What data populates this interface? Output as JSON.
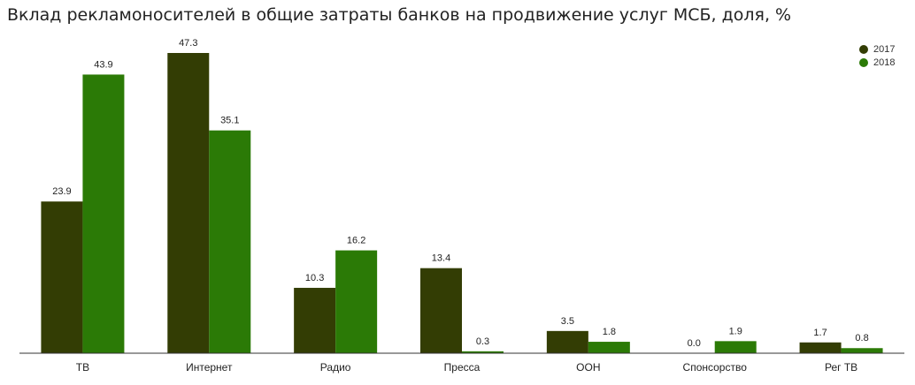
{
  "title": "Вклад рекламоносителей в общие затраты банков на продвижение услуг МСБ, доля, %",
  "chart_data": {
    "type": "bar",
    "title": "Вклад рекламоносителей в общие затраты банков на продвижение услуг МСБ, доля, %",
    "xlabel": "",
    "ylabel": "",
    "ylim": [
      0,
      50
    ],
    "grid": false,
    "legend_position": "top-right",
    "categories": [
      "ТВ",
      "Интернет",
      "Радио",
      "Пресса",
      "OOH",
      "Спонсорство",
      "Рег ТВ"
    ],
    "series": [
      {
        "name": "2017",
        "color": "#333d04",
        "values": [
          23.9,
          47.3,
          10.3,
          13.4,
          3.5,
          0.0,
          1.7
        ]
      },
      {
        "name": "2018",
        "color": "#2b7a06",
        "values": [
          43.9,
          35.1,
          16.2,
          0.3,
          1.8,
          1.9,
          0.8
        ]
      }
    ]
  }
}
